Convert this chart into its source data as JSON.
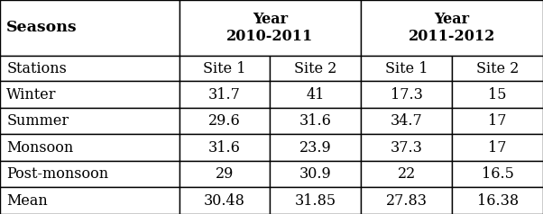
{
  "col_header_row2": [
    "Stations",
    "Site 1",
    "Site 2",
    "Site 1",
    "Site 2"
  ],
  "rows": [
    [
      "Winter",
      "31.7",
      "41",
      "17.3",
      "15"
    ],
    [
      "Summer",
      "29.6",
      "31.6",
      "34.7",
      "17"
    ],
    [
      "Monsoon",
      "31.6",
      "23.9",
      "37.3",
      "17"
    ],
    [
      "Post-monsoon",
      "29",
      "30.9",
      "22",
      "16.5"
    ],
    [
      "Mean",
      "30.48",
      "31.85",
      "27.83",
      "16.38"
    ]
  ],
  "background_color": "#ffffff",
  "line_color": "#000000",
  "text_color": "#000000",
  "header_fontsize": 11.5,
  "cell_fontsize": 11.5,
  "seasons_fontsize": 12.5
}
